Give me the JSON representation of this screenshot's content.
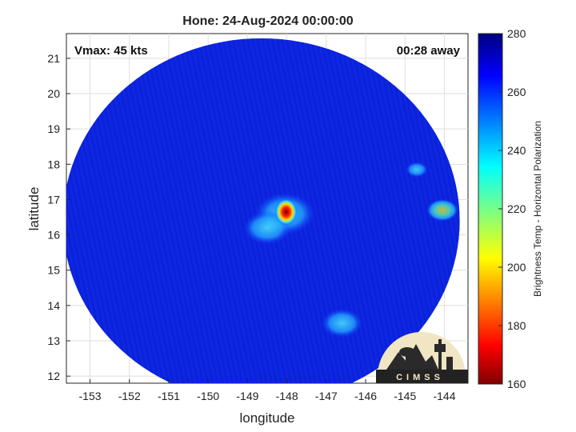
{
  "chart_data": {
    "type": "heatmap",
    "title": "Hone: 24-Aug-2024 00:00:00",
    "xlabel": "longitude",
    "ylabel": "latitude",
    "xlim": [
      -153.6,
      -143.4
    ],
    "ylim": [
      11.8,
      21.7
    ],
    "xticks": [
      -153,
      -152,
      -151,
      -150,
      -149,
      -148,
      -147,
      -146,
      -145,
      -144
    ],
    "yticks": [
      12,
      13,
      14,
      15,
      16,
      17,
      18,
      19,
      20,
      21
    ],
    "grid": true,
    "annotations": {
      "vmax": "Vmax: 45 kts",
      "time_offset": "00:28 away"
    },
    "colorbar": {
      "label": "Brightness Temp - Horizontal Polarization",
      "range": [
        160,
        280
      ],
      "ticks": [
        160,
        180,
        200,
        220,
        240,
        260,
        280
      ],
      "colormap": "jet"
    },
    "swath": {
      "center": [
        -148.65,
        16.4
      ],
      "background_value": 268
    },
    "features": [
      {
        "name": "eye",
        "lon": -148.02,
        "lat": 16.65,
        "value": 170
      },
      {
        "name": "eyewall",
        "lon": -148.05,
        "lat": 16.6,
        "value": 215
      },
      {
        "name": "inner band",
        "lon": -148.5,
        "lat": 16.2,
        "value": 240
      },
      {
        "name": "east convection",
        "lon": -144.05,
        "lat": 16.7,
        "value": 225
      },
      {
        "name": "northeast convection",
        "lon": -144.7,
        "lat": 17.85,
        "value": 242
      },
      {
        "name": "south band",
        "lon": -146.6,
        "lat": 13.5,
        "value": 248
      }
    ]
  },
  "logo": {
    "text": "CIMSS"
  }
}
